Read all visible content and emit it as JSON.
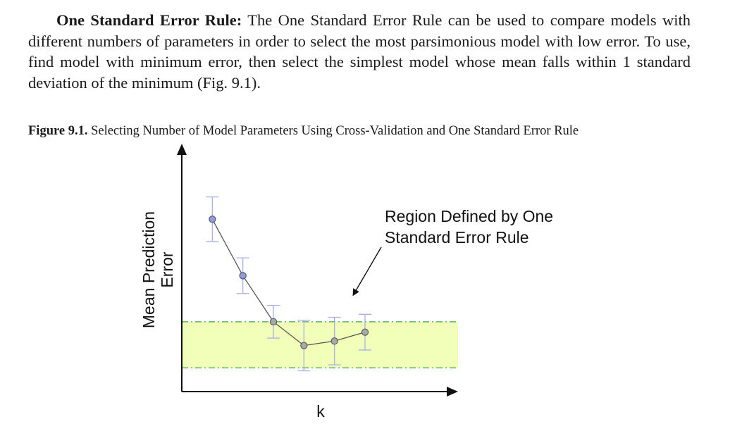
{
  "paragraph": {
    "heading": "One Standard Error Rule:",
    "body": "The One Standard Error Rule can be used to compare models with different numbers of parameters in order to select the most parsimonious model with low error. To use, find model with minimum error, then select the simplest model whose mean falls within 1 standard deviation of the minimum (Fig. 9.1)."
  },
  "figure": {
    "caption_label": "Figure 9.1.",
    "caption_text": "Selecting Number of Model Parameters Using Cross-Validation and One Standard Error Rule"
  },
  "chart_data": {
    "type": "line",
    "xlabel": "k",
    "ylabel_line1": "Mean Prediction",
    "ylabel_line2": "Error",
    "annotation_line1": "Region Defined by One",
    "annotation_line2": "Standard Error Rule",
    "x": [
      1,
      2,
      3,
      4,
      5,
      6
    ],
    "y": [
      8.6,
      6.7,
      5.15,
      4.35,
      4.5,
      4.8
    ],
    "error": [
      0.75,
      0.6,
      0.55,
      0.85,
      0.8,
      0.6
    ],
    "point_colors": [
      "#8f9ae0",
      "#8f9ae0",
      "#a9a9a9",
      "#a9a9a9",
      "#a9a9a9",
      "#a9a9a9"
    ],
    "band": [
      3.6,
      5.15
    ],
    "band_color": "#f1ffb8",
    "xlim": [
      0,
      9
    ],
    "ylim": [
      2.8,
      11.0
    ],
    "grid": false,
    "legend": "none"
  }
}
